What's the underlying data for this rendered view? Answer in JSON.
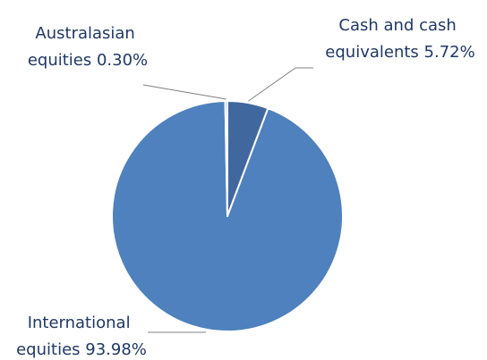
{
  "chart_data": {
    "type": "pie",
    "title": "",
    "legend": "none",
    "series": [
      {
        "values": [
          5.72,
          93.98,
          0.3
        ],
        "categories": [
          "Cash and cash equivalents",
          "International equities",
          "Australasian equities"
        ],
        "colors": [
          "#41689e",
          "#4e81bd",
          "#4e81bd"
        ]
      }
    ],
    "data_labels": [
      {
        "lines": [
          "Cash and cash",
          "equivalents 5.72%"
        ]
      },
      {
        "lines": [
          "International",
          "equities 93.98%"
        ]
      },
      {
        "lines": [
          "Australasian",
          "equities 0.30%"
        ]
      }
    ]
  }
}
